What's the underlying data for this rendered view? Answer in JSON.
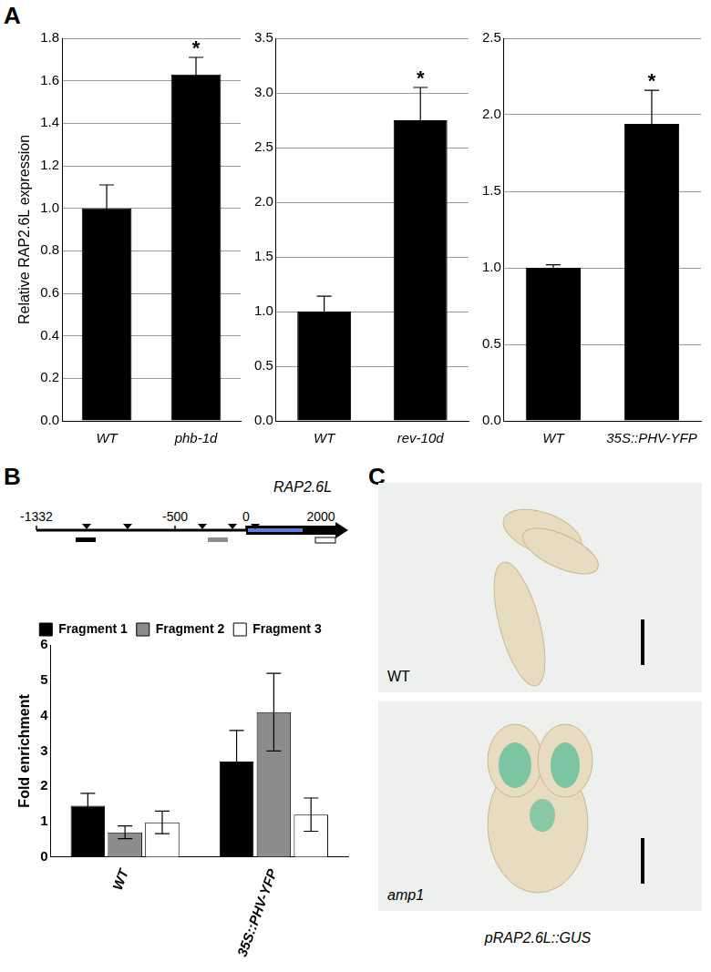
{
  "panel_labels": [
    "A",
    "B",
    "C"
  ],
  "chart_data": [
    {
      "type": "bar",
      "ylabel": "Relative RAP2.6L expression",
      "categories": [
        "WT",
        "phb-1d"
      ],
      "values": [
        1.0,
        1.63
      ],
      "errors": [
        0.11,
        0.08
      ],
      "color": "#000000",
      "ylim": [
        0,
        1.8
      ],
      "yticks": [
        {
          "value": 0,
          "label": "0.0"
        },
        0.2,
        0.4,
        0.6,
        0.8,
        {
          "value": 1,
          "label": "1.0"
        },
        1.2,
        1.4,
        1.6,
        1.8
      ],
      "grid": true,
      "annotations": [
        {
          "category": "phb-1d",
          "text": "*"
        }
      ]
    },
    {
      "type": "bar",
      "categories": [
        "WT",
        "rev-10d"
      ],
      "values": [
        1.0,
        2.75
      ],
      "errors": [
        0.14,
        0.3
      ],
      "color": "#000000",
      "ylim": [
        0,
        3.5
      ],
      "yticks": [
        {
          "value": 0,
          "label": "0.0"
        },
        0.5,
        {
          "value": 1,
          "label": "1.0"
        },
        1.5,
        {
          "value": 2,
          "label": "2.0"
        },
        2.5,
        {
          "value": 3,
          "label": "3.0"
        },
        3.5
      ],
      "grid": true,
      "annotations": [
        {
          "category": "rev-10d",
          "text": "*"
        }
      ]
    },
    {
      "type": "bar",
      "categories": [
        "WT",
        "35S::PHV-YFP"
      ],
      "values": [
        1.0,
        1.94
      ],
      "errors": [
        0.02,
        0.22
      ],
      "color": "#000000",
      "ylim": [
        0,
        2.5
      ],
      "yticks": [
        {
          "value": 0,
          "label": "0.0"
        },
        0.5,
        {
          "value": 1,
          "label": "1.0"
        },
        1.5,
        {
          "value": 2,
          "label": "2.0"
        },
        2.5
      ],
      "grid": true,
      "annotations": [
        {
          "category": "35S::PHV-YFP",
          "text": "*"
        }
      ]
    },
    {
      "type": "bar",
      "ylabel": "Fold enrichment",
      "categories": [
        "WT",
        "35S::PHV-YFP"
      ],
      "series": [
        {
          "name": "Fragment 1",
          "color": "#000000",
          "values": [
            1.45,
            2.7
          ],
          "errors": [
            0.35,
            0.88
          ]
        },
        {
          "name": "Fragment 2",
          "color": "#8c8c8c",
          "values": [
            0.7,
            4.1
          ],
          "errors": [
            0.18,
            1.1
          ]
        },
        {
          "name": "Fragment 3",
          "color": "#ffffff",
          "values": [
            0.98,
            1.2
          ],
          "errors": [
            0.32,
            0.47
          ]
        }
      ],
      "ylim": [
        0,
        6
      ],
      "yticks": [
        0,
        1,
        2,
        3,
        4,
        5,
        6
      ],
      "grid": false,
      "legend": "top"
    }
  ],
  "schematic": {
    "gene": "RAP2.6L",
    "positions": [
      -1332,
      -500,
      0,
      2000
    ]
  },
  "images": {
    "panels": [
      "WT",
      "amp1"
    ],
    "caption": "pRAP2.6L::GUS"
  }
}
